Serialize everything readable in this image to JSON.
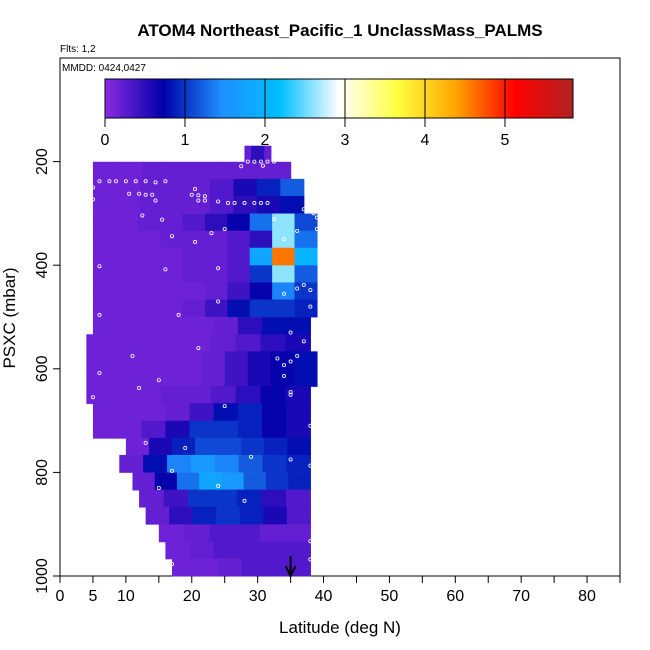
{
  "chart_data": {
    "type": "heatmap",
    "title": "ATOM4 Northeast_Pacific_1 UnclassMass_PALMS",
    "flights_note": "Flts: 1,2",
    "dates_note": "MMDD: 0424,0427",
    "xlabel": "Latitude (deg N)",
    "ylabel": "PSXC (mbar)",
    "xlim": [
      0,
      85
    ],
    "ylim": [
      1000,
      0
    ],
    "x_ticks": [
      0,
      5,
      10,
      20,
      30,
      40,
      50,
      60,
      70,
      80
    ],
    "x_minor_ticks": [
      15,
      25,
      35,
      45,
      55,
      65,
      75,
      85
    ],
    "y_ticks": [
      200,
      400,
      600,
      800,
      1000
    ],
    "colorbar": {
      "min": 0,
      "max": 5.85,
      "ticks": [
        0,
        1,
        2,
        3,
        4,
        5
      ],
      "colors": [
        "#8a2be2",
        "#0000aa",
        "#1e90ff",
        "#00bfff",
        "#ffffff",
        "#ffff40",
        "#ffa500",
        "#ff0000",
        "#b22222"
      ]
    },
    "arrow_latitude": 35,
    "cells": [
      {
        "p": 186,
        "lat0": 28,
        "lat1": 32,
        "v": [
          0.2,
          0.5,
          0.5,
          0.2
        ]
      },
      {
        "p": 217,
        "lat0": 5,
        "lat1": 35,
        "v": [
          0.15,
          0.15,
          0.2,
          0.2,
          0.2,
          0.2,
          0.2,
          0.2
        ]
      },
      {
        "p": 250,
        "lat0": 5,
        "lat1": 37,
        "v": [
          0.15,
          0.15,
          0.2,
          0.2,
          0.2,
          0.3,
          0.6,
          0.9,
          1.2
        ]
      },
      {
        "p": 283,
        "lat0": 5,
        "lat1": 37,
        "v": [
          0.15,
          0.15,
          0.2,
          0.2,
          0.2,
          0.3,
          0.5,
          0.6,
          0.8
        ]
      },
      {
        "p": 317,
        "lat0": 5,
        "lat1": 39,
        "v": [
          0.15,
          0.15,
          0.2,
          0.2,
          0.3,
          0.5,
          0.7,
          1.3,
          2.6,
          1.1
        ]
      },
      {
        "p": 350,
        "lat0": 5,
        "lat1": 39,
        "v": [
          0.15,
          0.15,
          0.15,
          0.2,
          0.2,
          0.2,
          0.3,
          0.5,
          2.6,
          1.3
        ]
      },
      {
        "p": 383,
        "lat0": 5,
        "lat1": 39,
        "v": [
          0.15,
          0.15,
          0.15,
          0.15,
          0.2,
          0.2,
          0.3,
          1.8,
          4.6,
          2.0
        ]
      },
      {
        "p": 417,
        "lat0": 5,
        "lat1": 39,
        "v": [
          0.15,
          0.15,
          0.15,
          0.15,
          0.2,
          0.2,
          0.3,
          1.0,
          2.6,
          1.2
        ]
      },
      {
        "p": 450,
        "lat0": 5,
        "lat1": 39,
        "v": [
          0.15,
          0.15,
          0.15,
          0.15,
          0.15,
          0.2,
          0.4,
          0.7,
          1.4,
          1.0
        ]
      },
      {
        "p": 483,
        "lat0": 5,
        "lat1": 39,
        "v": [
          0.15,
          0.15,
          0.15,
          0.15,
          0.2,
          0.4,
          0.8,
          1.0,
          1.0,
          0.9
        ]
      },
      {
        "p": 517,
        "lat0": 5,
        "lat1": 38,
        "v": [
          0.15,
          0.15,
          0.15,
          0.15,
          0.15,
          0.2,
          0.5,
          0.8,
          0.8
        ]
      },
      {
        "p": 550,
        "lat0": 4,
        "lat1": 38,
        "v": [
          0.15,
          0.15,
          0.15,
          0.15,
          0.15,
          0.2,
          0.3,
          0.5,
          0.6
        ]
      },
      {
        "p": 583,
        "lat0": 4,
        "lat1": 39,
        "v": [
          0.15,
          0.15,
          0.15,
          0.15,
          0.15,
          0.2,
          0.4,
          0.6,
          0.7,
          0.8
        ]
      },
      {
        "p": 617,
        "lat0": 4,
        "lat1": 39,
        "v": [
          0.15,
          0.15,
          0.15,
          0.15,
          0.15,
          0.2,
          0.4,
          0.6,
          0.7,
          0.8
        ]
      },
      {
        "p": 650,
        "lat0": 4,
        "lat1": 38,
        "v": [
          0.15,
          0.15,
          0.15,
          0.2,
          0.2,
          0.3,
          0.5,
          0.7,
          0.6
        ]
      },
      {
        "p": 683,
        "lat0": 5,
        "lat1": 38,
        "v": [
          0.15,
          0.15,
          0.15,
          0.2,
          0.4,
          0.8,
          0.9,
          0.7,
          0.6
        ]
      },
      {
        "p": 717,
        "lat0": 5,
        "lat1": 38,
        "v": [
          0.15,
          0.15,
          0.3,
          0.6,
          1.0,
          1.0,
          0.9,
          0.7,
          0.6
        ]
      },
      {
        "p": 750,
        "lat0": 10,
        "lat1": 38,
        "v": [
          0.15,
          0.6,
          0.9,
          1.1,
          1.1,
          1.0,
          0.9,
          0.8
        ]
      },
      {
        "p": 783,
        "lat0": 9,
        "lat1": 38,
        "v": [
          0.2,
          0.8,
          1.4,
          1.6,
          1.4,
          1.2,
          1.0,
          0.9
        ]
      },
      {
        "p": 817,
        "lat0": 11,
        "lat1": 38,
        "v": [
          0.2,
          0.7,
          1.3,
          1.8,
          1.6,
          1.2,
          1.0,
          0.9
        ]
      },
      {
        "p": 850,
        "lat0": 12,
        "lat1": 38,
        "v": [
          0.2,
          0.4,
          1.0,
          1.0,
          0.9,
          0.5,
          0.3
        ]
      },
      {
        "p": 883,
        "lat0": 13,
        "lat1": 38,
        "v": [
          0.2,
          0.5,
          0.9,
          1.0,
          0.9,
          0.6,
          0.3
        ]
      },
      {
        "p": 917,
        "lat0": 15,
        "lat1": 38,
        "v": [
          0.15,
          0.2,
          0.3,
          0.3,
          0.2,
          0.2
        ]
      },
      {
        "p": 950,
        "lat0": 16,
        "lat1": 38,
        "v": [
          0.15,
          0.2,
          0.3,
          0.3,
          0.3,
          0.3
        ]
      },
      {
        "p": 983,
        "lat0": 17,
        "lat1": 38,
        "v": [
          0.15,
          0.15,
          0.2,
          0.3,
          0.3,
          0.3
        ]
      }
    ],
    "sample_points": [
      [
        28.5,
        200
      ],
      [
        29.5,
        200
      ],
      [
        30.5,
        200
      ],
      [
        31.5,
        200
      ],
      [
        32.5,
        200
      ],
      [
        27.5,
        209
      ],
      [
        30.8,
        208
      ],
      [
        6,
        238
      ],
      [
        7.5,
        238
      ],
      [
        8.5,
        238
      ],
      [
        10,
        238
      ],
      [
        11.5,
        238
      ],
      [
        13,
        238
      ],
      [
        14.5,
        240
      ],
      [
        16,
        238
      ],
      [
        5,
        250
      ],
      [
        20.5,
        253
      ],
      [
        10.5,
        262
      ],
      [
        12,
        262
      ],
      [
        13,
        264
      ],
      [
        14,
        264
      ],
      [
        20,
        264
      ],
      [
        21,
        265
      ],
      [
        22,
        267
      ],
      [
        5,
        273
      ],
      [
        21,
        275
      ],
      [
        22,
        275
      ],
      [
        24,
        277
      ],
      [
        25.5,
        280
      ],
      [
        26.5,
        280
      ],
      [
        28,
        280
      ],
      [
        29.5,
        280
      ],
      [
        30.5,
        280
      ],
      [
        31.5,
        280
      ],
      [
        14.5,
        275
      ],
      [
        37,
        292
      ],
      [
        38.5,
        300
      ],
      [
        39,
        308
      ],
      [
        12.5,
        304
      ],
      [
        15.5,
        312
      ],
      [
        32.5,
        311
      ],
      [
        25,
        330
      ],
      [
        23,
        338
      ],
      [
        36,
        334
      ],
      [
        39,
        330
      ],
      [
        17,
        344
      ],
      [
        34,
        350
      ],
      [
        40,
        345
      ],
      [
        20.5,
        355
      ],
      [
        6,
        402
      ],
      [
        24,
        406
      ],
      [
        16,
        408
      ],
      [
        40,
        412
      ],
      [
        37,
        438
      ],
      [
        36,
        445
      ],
      [
        38,
        448
      ],
      [
        34,
        455
      ],
      [
        24,
        470
      ],
      [
        38,
        480
      ],
      [
        40,
        496
      ],
      [
        6,
        496
      ],
      [
        18,
        496
      ],
      [
        35,
        530
      ],
      [
        37,
        547
      ],
      [
        21,
        560
      ],
      [
        36,
        575
      ],
      [
        11,
        575
      ],
      [
        33,
        580
      ],
      [
        35,
        586
      ],
      [
        34,
        593
      ],
      [
        6,
        608
      ],
      [
        34,
        614
      ],
      [
        15,
        622
      ],
      [
        12,
        637
      ],
      [
        35,
        645
      ],
      [
        35,
        650
      ],
      [
        5,
        655
      ],
      [
        25,
        672
      ],
      [
        38,
        710
      ],
      [
        13,
        743
      ],
      [
        19,
        753
      ],
      [
        29,
        770
      ],
      [
        35,
        775
      ],
      [
        38,
        787
      ],
      [
        17,
        797
      ],
      [
        24,
        826
      ],
      [
        28,
        855
      ],
      [
        15,
        830
      ],
      [
        38,
        933
      ],
      [
        38,
        968
      ],
      [
        17,
        977
      ]
    ]
  }
}
